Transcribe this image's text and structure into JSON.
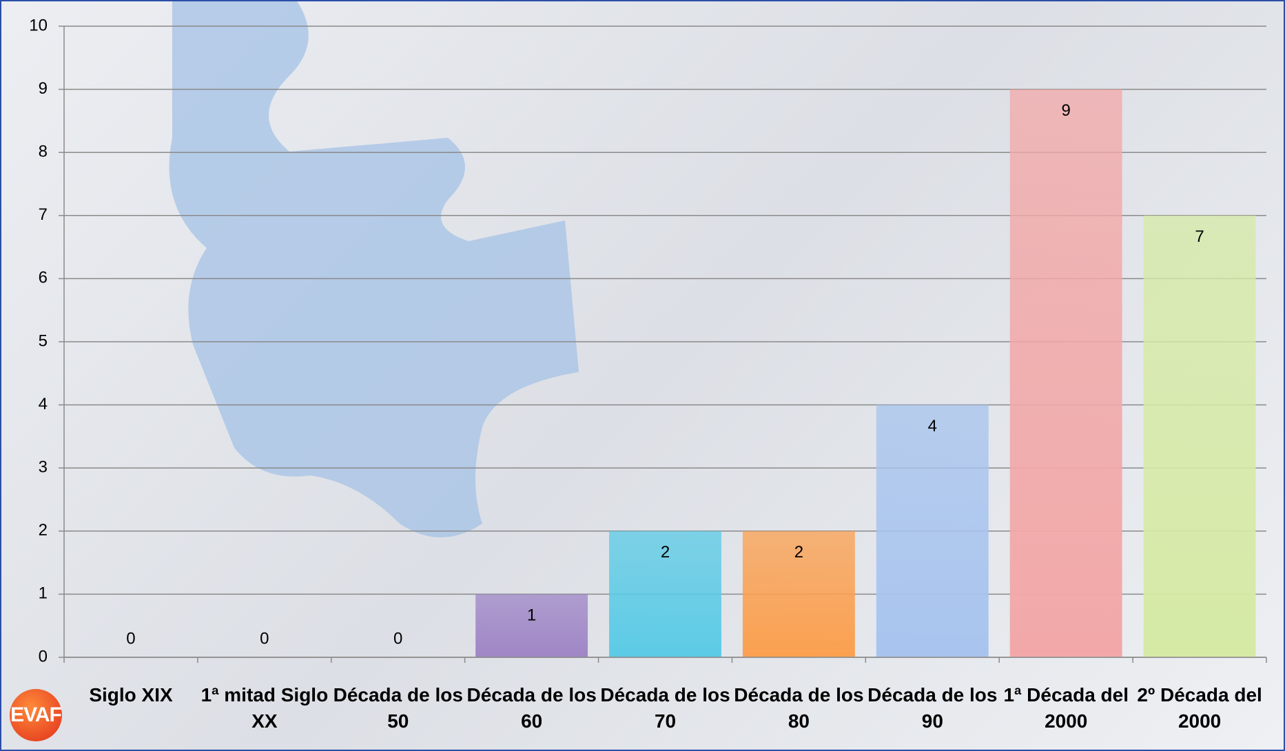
{
  "chart_data": {
    "type": "bar",
    "categories": [
      "Siglo XIX",
      "1ª mitad Siglo XX",
      "Década de los 50",
      "Década de los 60",
      "Década de los 70",
      "Década de los 80",
      "Década de los 90",
      "1ª Década del 2000",
      "2º Década del 2000"
    ],
    "values": [
      0,
      0,
      0,
      1,
      2,
      2,
      4,
      9,
      7
    ],
    "colors": [
      "#a48cc8",
      "#a48cc8",
      "#a48cc8",
      "#9f86c6",
      "#5ccbe6",
      "#fba050",
      "#a8c4ee",
      "#f2a8a8",
      "#d6eaa6"
    ],
    "ylim": [
      0,
      10
    ],
    "yticks": [
      0,
      1,
      2,
      3,
      4,
      5,
      6,
      7,
      8,
      9,
      10
    ],
    "grid": true,
    "logo": "EVAF"
  }
}
